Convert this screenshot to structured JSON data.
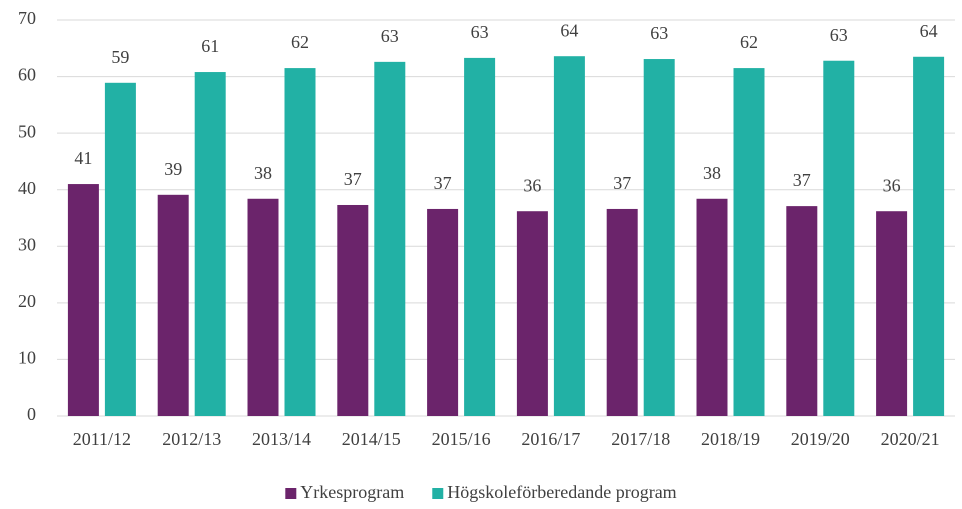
{
  "chart_data": {
    "type": "bar",
    "categories": [
      "2011/12",
      "2012/13",
      "2013/14",
      "2014/15",
      "2015/16",
      "2016/17",
      "2017/18",
      "2018/19",
      "2019/20",
      "2020/21"
    ],
    "series": [
      {
        "name": "Yrkesprogram",
        "color": "#6b246b",
        "values": [
          41.0,
          39.1,
          38.4,
          37.3,
          36.6,
          36.2,
          36.6,
          38.4,
          37.1,
          36.2
        ],
        "value_labels": [
          "41",
          "39",
          "38",
          "37",
          "37",
          "36",
          "37",
          "38",
          "37",
          "36"
        ]
      },
      {
        "name": "Högskoleförberedande program",
        "color": "#22b1a5",
        "values": [
          58.9,
          60.8,
          61.5,
          62.6,
          63.3,
          63.6,
          63.1,
          61.5,
          62.8,
          63.5
        ],
        "value_labels": [
          "59",
          "61",
          "62",
          "63",
          "63",
          "64",
          "63",
          "62",
          "63",
          "64"
        ]
      }
    ],
    "ylim": [
      0,
      70
    ],
    "yticks": [
      0,
      10,
      20,
      30,
      40,
      50,
      60,
      70
    ],
    "grid": true,
    "legend": "bottom"
  }
}
